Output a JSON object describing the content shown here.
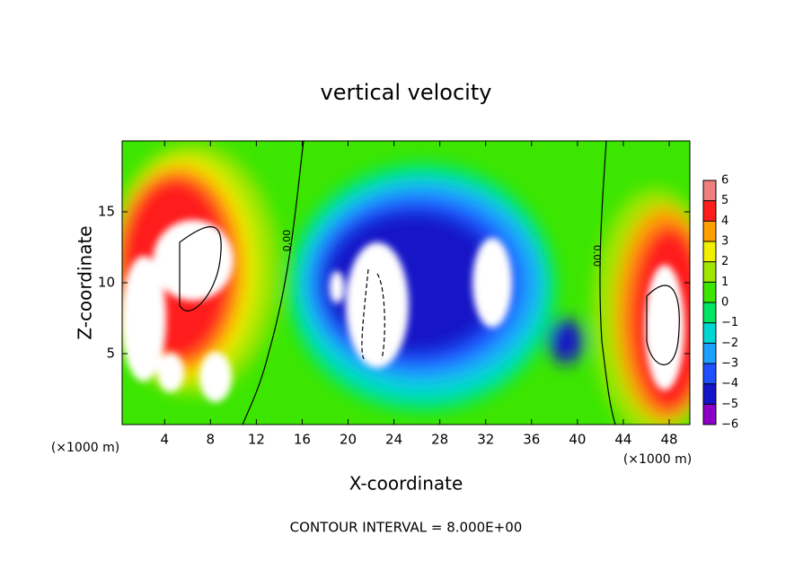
{
  "chart_data": {
    "type": "contour",
    "title": "vertical velocity",
    "x_label": "X-coordinate",
    "y_label": "Z-coordinate",
    "x_unit": "(×1000 m)",
    "y_unit": "(×1000 m)",
    "annotation": "CONTOUR INTERVAL = 8.000E+00",
    "contour_labels": [
      "0.00",
      "0.00"
    ],
    "xlim": [
      0.3,
      49.8
    ],
    "xticks": [
      4,
      8,
      12,
      16,
      20,
      24,
      28,
      32,
      36,
      40,
      44,
      48
    ],
    "ylim": [
      0,
      20
    ],
    "yticks": [
      5,
      10,
      15
    ],
    "colorbar": {
      "ticks": [
        {
          "value": -6,
          "label": "−6"
        },
        {
          "value": -5,
          "label": "−5"
        },
        {
          "value": -4,
          "label": "−4"
        },
        {
          "value": -3,
          "label": "−3"
        },
        {
          "value": -2,
          "label": "−2"
        },
        {
          "value": -1,
          "label": "−1"
        },
        0,
        1,
        2,
        3,
        4,
        5,
        6
      ],
      "colors": [
        "#8c00c8",
        "#1414c8",
        "#1e50ff",
        "#1ea0ff",
        "#00d7d2",
        "#00e664",
        "#3ce600",
        "#a0e600",
        "#f0f000",
        "#ffa000",
        "#ff1e1e",
        "#f08080"
      ]
    }
  }
}
